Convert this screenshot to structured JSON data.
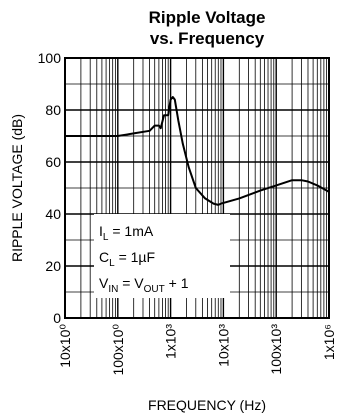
{
  "chart_data": {
    "type": "line",
    "title": "Ripple Voltage",
    "subtitle": "vs. Frequency",
    "xlabel": "FREQUENCY (Hz)",
    "ylabel": "RIPPLE VOLTAGE (dB)",
    "x_scale": "log",
    "xlim": [
      10,
      1000000
    ],
    "ylim": [
      0,
      100
    ],
    "x_ticks": [
      10,
      100,
      1000,
      10000,
      100000,
      1000000
    ],
    "x_tick_labels": [
      "10x10⁰",
      "100x10⁰",
      "1x10³",
      "10x10³",
      "100x10³",
      "1x10⁶"
    ],
    "y_ticks": [
      0,
      20,
      40,
      60,
      80,
      100
    ],
    "y_tick_labels": [
      "0",
      "20",
      "40",
      "60",
      "80",
      "100"
    ],
    "grid": true,
    "series": [
      {
        "x": [
          10,
          30,
          100,
          200,
          400,
          500,
          600,
          650,
          750,
          800,
          900,
          1000,
          1100,
          1200,
          1400,
          1700,
          2200,
          3000,
          4500,
          6500,
          8000,
          9000,
          11000,
          20000,
          50000,
          100000,
          200000,
          300000,
          400000,
          600000,
          1000000
        ],
        "y": [
          70,
          70,
          70,
          71,
          72,
          74,
          74,
          73,
          78,
          78,
          78,
          84,
          85,
          84,
          76,
          67,
          58,
          50,
          46,
          44,
          43.5,
          44,
          44.5,
          46,
          49,
          51,
          53,
          53,
          52.5,
          51,
          48.5
        ],
        "color": "#000000"
      }
    ],
    "annotations": {
      "il": {
        "main": "I",
        "sub": "L",
        "rest": " = 1mA"
      },
      "cl": {
        "main": "C",
        "sub": "L",
        "rest": " = 1µF"
      },
      "vin": {
        "main": "V",
        "sub": "IN",
        "mid": " = V",
        "sub2": "OUT",
        "rest": " + 1"
      }
    }
  }
}
